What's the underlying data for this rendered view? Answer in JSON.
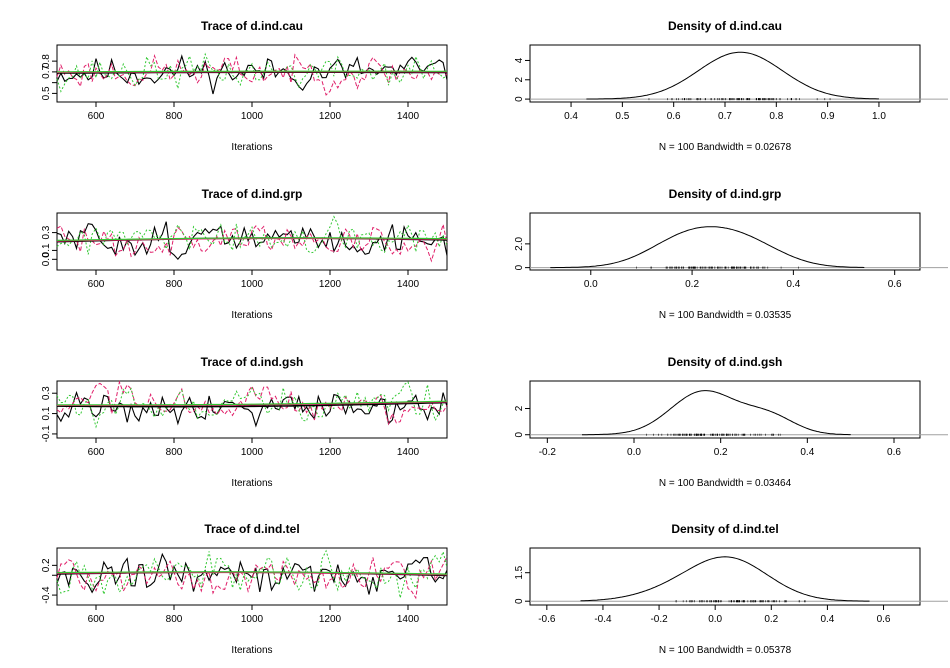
{
  "chart_data": [
    {
      "type": "line",
      "title": "Trace of d.ind.cau",
      "xlabel": "Iterations",
      "xlim": [
        500,
        1500
      ],
      "ylim": [
        0.42,
        0.95
      ],
      "xticks": [
        600,
        800,
        1000,
        1200,
        1400
      ],
      "yticks": [
        0.5,
        0.6,
        0.7,
        0.8
      ],
      "ytick_labels": [
        "0.5",
        "",
        "0.7",
        "0.8"
      ],
      "trace_center": 0.7,
      "trace_spread": 0.07,
      "series": [
        {
          "color": "#000000",
          "dash": "",
          "seed": 11
        },
        {
          "color": "#e0206a",
          "dash": "4,2",
          "seed": 23
        },
        {
          "color": "#32c832",
          "dash": "2,2",
          "seed": 37
        }
      ],
      "smooth": {
        "start": 0.695,
        "end": 0.7,
        "bump": 0.005
      }
    },
    {
      "type": "area",
      "title": "Density of d.ind.cau",
      "xlabel": "N = 100   Bandwidth = 0.02678",
      "xlim": [
        0.32,
        1.08
      ],
      "ylim": [
        -0.3,
        5.6
      ],
      "xticks": [
        0.4,
        0.5,
        0.6,
        0.7,
        0.8,
        0.9,
        1.0
      ],
      "xtick_labels": [
        "0.4",
        "0.5",
        "0.6",
        "0.7",
        "0.8",
        "0.9",
        "1.0"
      ],
      "yticks": [
        0,
        2,
        4
      ],
      "curve_from": 0.43,
      "curve_to": 1.0,
      "components": [
        {
          "mu": 0.73,
          "sigma": 0.082,
          "h": 4.85
        }
      ],
      "rug_from": 0.53,
      "rug_to": 0.92
    },
    {
      "type": "line",
      "title": "Trace of d.ind.grp",
      "xlabel": "Iterations",
      "xlim": [
        500,
        1500
      ],
      "ylim": [
        -0.12,
        0.52
      ],
      "xticks": [
        600,
        800,
        1000,
        1200,
        1400
      ],
      "yticks": [
        0.0,
        0.1,
        0.3
      ],
      "ytick_labels": [
        "0.0",
        "0.1",
        "0.3"
      ],
      "trace_center": 0.22,
      "trace_spread": 0.09,
      "series": [
        {
          "color": "#000000",
          "dash": "",
          "seed": 51
        },
        {
          "color": "#e0206a",
          "dash": "4,2",
          "seed": 63
        },
        {
          "color": "#32c832",
          "dash": "2,2",
          "seed": 77
        }
      ],
      "smooth": {
        "start": 0.205,
        "end": 0.225,
        "bump": 0.03
      }
    },
    {
      "type": "area",
      "title": "Density of d.ind.grp",
      "xlabel": "N = 100   Bandwidth = 0.03535",
      "xlim": [
        -0.12,
        0.65
      ],
      "ylim": [
        -0.2,
        4.6
      ],
      "xticks": [
        0.0,
        0.2,
        0.4,
        0.6
      ],
      "xtick_labels": [
        "0.0",
        "0.2",
        "0.4",
        "0.6"
      ],
      "yticks": [
        0,
        2
      ],
      "ytick_labels": [
        "0",
        "2.0"
      ],
      "curve_from": -0.08,
      "curve_to": 0.54,
      "components": [
        {
          "mu": 0.19,
          "sigma": 0.075,
          "h": 2.4
        },
        {
          "mu": 0.3,
          "sigma": 0.075,
          "h": 2.1
        }
      ],
      "rug_from": 0.02,
      "rug_to": 0.46
    },
    {
      "type": "line",
      "title": "Trace of d.ind.gsh",
      "xlabel": "Iterations",
      "xlim": [
        500,
        1500
      ],
      "ylim": [
        -0.14,
        0.42
      ],
      "xticks": [
        600,
        800,
        1000,
        1200,
        1400
      ],
      "yticks": [
        -0.1,
        0.1,
        0.3
      ],
      "ytick_labels": [
        "-0.1",
        "0.1",
        "0.3"
      ],
      "trace_center": 0.18,
      "trace_spread": 0.08,
      "series": [
        {
          "color": "#000000",
          "dash": "",
          "seed": 91
        },
        {
          "color": "#e0206a",
          "dash": "4,2",
          "seed": 103
        },
        {
          "color": "#32c832",
          "dash": "2,2",
          "seed": 117
        }
      ],
      "smooth": {
        "start": 0.18,
        "end": 0.215,
        "bump": -0.02
      }
    },
    {
      "type": "area",
      "title": "Density of d.ind.gsh",
      "xlabel": "N = 100   Bandwidth = 0.03464",
      "xlim": [
        -0.24,
        0.66
      ],
      "ylim": [
        -0.25,
        4.1
      ],
      "xticks": [
        -0.2,
        0.0,
        0.2,
        0.4,
        0.6
      ],
      "xtick_labels": [
        "-0.2",
        "0.0",
        "0.2",
        "0.4",
        "0.6"
      ],
      "yticks": [
        0,
        2
      ],
      "curve_from": -0.12,
      "curve_to": 0.5,
      "components": [
        {
          "mu": 0.16,
          "sigma": 0.075,
          "h": 3.3
        },
        {
          "mu": 0.31,
          "sigma": 0.06,
          "h": 1.4
        }
      ],
      "rug_from": -0.02,
      "rug_to": 0.4
    },
    {
      "type": "line",
      "title": "Trace of d.ind.tel",
      "xlabel": "Iterations",
      "xlim": [
        500,
        1500
      ],
      "ylim": [
        -0.6,
        0.55
      ],
      "xticks": [
        600,
        800,
        1000,
        1200,
        1400
      ],
      "yticks": [
        -0.4,
        0.0,
        0.2
      ],
      "ytick_labels": [
        "-0.4",
        "",
        "0.2"
      ],
      "trace_center": 0.02,
      "trace_spread": 0.17,
      "series": [
        {
          "color": "#000000",
          "dash": "",
          "seed": 131
        },
        {
          "color": "#e0206a",
          "dash": "4,2",
          "seed": 143
        },
        {
          "color": "#32c832",
          "dash": "2,2",
          "seed": 157
        }
      ],
      "smooth": {
        "start": 0.04,
        "end": 0.01,
        "bump": 0.05
      }
    },
    {
      "type": "area",
      "title": "Density of d.ind.tel",
      "xlabel": "N = 100   Bandwidth = 0.05378",
      "xlim": [
        -0.66,
        0.73
      ],
      "ylim": [
        -0.2,
        2.8
      ],
      "xticks": [
        -0.6,
        -0.4,
        -0.2,
        0.0,
        0.2,
        0.4,
        0.6
      ],
      "xtick_labels": [
        "-0.6",
        "-0.4",
        "-0.2",
        "0.0",
        "0.2",
        "0.4",
        "0.6"
      ],
      "yticks": [
        0,
        1.5
      ],
      "ytick_labels": [
        "0",
        "1.5"
      ],
      "curve_from": -0.48,
      "curve_to": 0.55,
      "components": [
        {
          "mu": 0.04,
          "sigma": 0.145,
          "h": 2.3
        },
        {
          "mu": -0.2,
          "sigma": 0.12,
          "h": 0.25
        }
      ],
      "rug_from": -0.28,
      "rug_to": 0.42
    }
  ]
}
